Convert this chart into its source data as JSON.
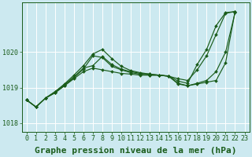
{
  "bg_color": "#cce9f0",
  "grid_color": "#b8d8e0",
  "line_color": "#1a5c1a",
  "marker_color": "#1a5c1a",
  "xlabel": "Graphe pression niveau de la mer (hPa)",
  "xlim": [
    -0.5,
    23.5
  ],
  "ylim": [
    1017.75,
    1021.4
  ],
  "yticks": [
    1018,
    1019,
    1020
  ],
  "xticks": [
    0,
    1,
    2,
    3,
    4,
    5,
    6,
    7,
    8,
    9,
    10,
    11,
    12,
    13,
    14,
    15,
    16,
    17,
    18,
    19,
    20,
    21,
    22,
    23
  ],
  "lines": [
    {
      "x": [
        0,
        1,
        2,
        3,
        4,
        5,
        6,
        7,
        8,
        9,
        10,
        11,
        12,
        13,
        14,
        15,
        16,
        17,
        18,
        19,
        20,
        21,
        22,
        23
      ],
      "y": [
        1018.65,
        1018.45,
        1018.7,
        1018.85,
        1019.05,
        1019.25,
        1019.45,
        1019.55,
        1019.5,
        1019.45,
        1019.4,
        1019.38,
        1019.35,
        1019.35,
        1019.35,
        1019.32,
        1019.25,
        1019.2,
        1019.5,
        1019.9,
        1020.5,
        1021.1,
        1021.15,
        null
      ]
    },
    {
      "x": [
        0,
        1,
        2,
        3,
        4,
        5,
        6,
        7,
        8,
        9,
        10,
        11,
        12,
        13,
        14,
        15,
        16,
        17,
        18,
        19,
        20,
        21,
        22,
        23
      ],
      "y": [
        1018.65,
        1018.45,
        1018.7,
        1018.85,
        1019.05,
        1019.28,
        1019.52,
        1019.9,
        1019.85,
        1019.6,
        1019.5,
        1019.42,
        1019.38,
        1019.35,
        1019.35,
        1019.32,
        1019.1,
        1019.05,
        1019.1,
        1019.15,
        1019.2,
        1019.7,
        1021.15,
        null
      ]
    },
    {
      "x": [
        0,
        1,
        2,
        3,
        4,
        5,
        6,
        7,
        8,
        9,
        10,
        11,
        12,
        13,
        14,
        15,
        16,
        17,
        18,
        19,
        20,
        21,
        22,
        23
      ],
      "y": [
        1018.65,
        1018.45,
        1018.7,
        1018.88,
        1019.1,
        1019.35,
        1019.62,
        1019.95,
        1020.08,
        1019.82,
        1019.6,
        1019.48,
        1019.42,
        1019.38,
        1019.35,
        1019.32,
        1019.12,
        1019.05,
        1019.12,
        1019.2,
        1019.45,
        1020.0,
        1021.12,
        null
      ]
    },
    {
      "x": [
        0,
        1,
        2,
        3,
        4,
        5,
        6,
        7,
        8,
        9,
        10,
        11,
        12,
        13,
        14,
        15,
        16,
        17,
        18,
        19,
        20,
        21,
        22,
        23
      ],
      "y": [
        1018.65,
        1018.45,
        1018.7,
        1018.88,
        1019.08,
        1019.3,
        1019.55,
        1019.62,
        1019.88,
        1019.65,
        1019.52,
        1019.45,
        1019.4,
        1019.38,
        1019.35,
        1019.33,
        1019.18,
        1019.12,
        1019.65,
        1020.08,
        1020.75,
        1021.12,
        1021.15,
        null
      ]
    }
  ],
  "title_fontsize": 8,
  "tick_fontsize": 6,
  "xlabel_fontsize": 8,
  "marker_size": 2.0,
  "linewidth": 0.85
}
